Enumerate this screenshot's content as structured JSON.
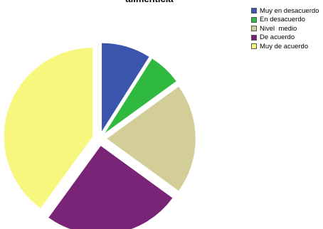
{
  "chart_data": {
    "type": "pie",
    "title": "alimenticia",
    "series": [
      {
        "name": "",
        "slices": [
          {
            "label": "Muy en desacuerdo",
            "value": 9,
            "color": "#3b55ac"
          },
          {
            "label": "En desacuerdo",
            "value": 6,
            "color": "#30b93f"
          },
          {
            "label": "Nivel  medio",
            "value": 20,
            "color": "#d3cd97"
          },
          {
            "label": "De acuerdo",
            "value": 25,
            "color": "#7a2478"
          },
          {
            "label": "Muy de acuerdo",
            "value": 40,
            "color": "#f7f77d"
          }
        ]
      }
    ],
    "legend_position": "top-right"
  }
}
